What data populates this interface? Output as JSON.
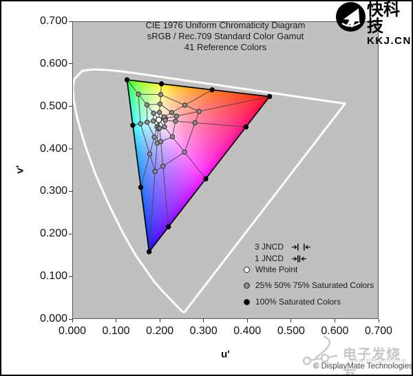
{
  "header": {
    "logo_name": "快科技",
    "logo_sub": "KKJ.CN"
  },
  "watermark": {
    "brand": "电子发烧友",
    "url": "www.elecfans.com",
    "copyright": "© DisplayMate Technologies"
  },
  "chart_data": {
    "type": "scatter",
    "title_lines": [
      "CIE 1976 Uniform Chromaticity Diagram",
      "sRGB / Rec.709 Standard Color Gamut",
      "41 Reference Colors"
    ],
    "xlabel": "u'",
    "ylabel": "v'",
    "xlim": [
      0.0,
      0.7
    ],
    "ylim": [
      0.0,
      0.7
    ],
    "x_ticks": [
      "0.000",
      "0.100",
      "0.200",
      "0.300",
      "0.400",
      "0.500",
      "0.600",
      "0.700"
    ],
    "y_ticks": [
      "0.000",
      "0.100",
      "0.200",
      "0.300",
      "0.400",
      "0.500",
      "0.600",
      "0.700"
    ],
    "grid": false,
    "legend_position": "inside-lower-right",
    "colors": {
      "plot_bg": "#c0c0c0",
      "spectral_locus": "#ffffff",
      "gamut_outline": "#000000",
      "reference_lines": "#4a4a4a",
      "white_swatch": "#ffffff",
      "gray_swatch": "#8e8e8e",
      "black_swatch": "#000000"
    },
    "white_point": {
      "label": "White Point",
      "u": 0.1978,
      "v": 0.4683
    },
    "gamut_vertices": {
      "red": [
        0.4508,
        0.5229
      ],
      "green": [
        0.125,
        0.5625
      ],
      "blue": [
        0.1755,
        0.1579
      ]
    },
    "saturation_levels_percent": [
      25,
      50,
      75,
      100
    ],
    "hues": [
      {
        "name": "red",
        "points": [
          [
            0.2129,
            0.4716
          ],
          [
            0.2383,
            0.477
          ],
          [
            0.2898,
            0.4882
          ],
          [
            0.4508,
            0.5229
          ]
        ]
      },
      {
        "name": "orange",
        "points": [
          [
            0.2095,
            0.4751
          ],
          [
            0.2273,
            0.4854
          ],
          [
            0.2573,
            0.5028
          ],
          [
            0.3196,
            0.5388
          ]
        ]
      },
      {
        "name": "yellow",
        "points": [
          [
            0.1991,
            0.4859
          ],
          [
            0.2005,
            0.5055
          ],
          [
            0.2021,
            0.5277
          ],
          [
            0.2039,
            0.5529
          ]
        ]
      },
      {
        "name": "green",
        "points": [
          [
            0.1858,
            0.4839
          ],
          [
            0.1707,
            0.5035
          ],
          [
            0.1511,
            0.5287
          ],
          [
            0.125,
            0.5625
          ]
        ]
      },
      {
        "name": "cyan",
        "points": [
          [
            0.1852,
            0.4656
          ],
          [
            0.1712,
            0.4626
          ],
          [
            0.1557,
            0.4592
          ],
          [
            0.1383,
            0.4555
          ]
        ]
      },
      {
        "name": "azure",
        "points": [
          [
            0.1936,
            0.452
          ],
          [
            0.1873,
            0.4278
          ],
          [
            0.1769,
            0.3879
          ],
          [
            0.1566,
            0.3096
          ]
        ]
      },
      {
        "name": "blue",
        "points": [
          [
            0.1963,
            0.4476
          ],
          [
            0.1939,
            0.4136
          ],
          [
            0.1891,
            0.3469
          ],
          [
            0.1755,
            0.1579
          ]
        ]
      },
      {
        "name": "violet",
        "points": [
          [
            0.1996,
            0.4486
          ],
          [
            0.2023,
            0.4171
          ],
          [
            0.2074,
            0.3592
          ],
          [
            0.2198,
            0.2167
          ]
        ]
      },
      {
        "name": "magenta",
        "points": [
          [
            0.2106,
            0.4518
          ],
          [
            0.2287,
            0.4284
          ],
          [
            0.2566,
            0.3923
          ],
          [
            0.3051,
            0.3297
          ]
        ]
      },
      {
        "name": "rose",
        "points": [
          [
            0.2124,
            0.4671
          ],
          [
            0.236,
            0.4651
          ],
          [
            0.2805,
            0.4614
          ],
          [
            0.3971,
            0.4516
          ]
        ]
      }
    ],
    "spectral_locus": [
      [
        0.2568,
        0.0166
      ],
      [
        0.2557,
        0.0159
      ],
      [
        0.2522,
        0.0169
      ],
      [
        0.2347,
        0.035
      ],
      [
        0.2266,
        0.0437
      ],
      [
        0.2161,
        0.0549
      ],
      [
        0.2033,
        0.0688
      ],
      [
        0.1877,
        0.0871
      ],
      [
        0.1441,
        0.151
      ],
      [
        0.1147,
        0.2044
      ],
      [
        0.0828,
        0.2708
      ],
      [
        0.0521,
        0.3427
      ],
      [
        0.0282,
        0.4117
      ],
      [
        0.0119,
        0.4699
      ],
      [
        0.0035,
        0.5131
      ],
      [
        0.0014,
        0.5431
      ],
      [
        0.0046,
        0.5638
      ],
      [
        0.0231,
        0.5837
      ],
      [
        0.0501,
        0.5868
      ],
      [
        0.0792,
        0.5856
      ],
      [
        0.1127,
        0.5821
      ],
      [
        0.1531,
        0.5766
      ],
      [
        0.2026,
        0.5694
      ],
      [
        0.2623,
        0.5604
      ],
      [
        0.3315,
        0.5501
      ],
      [
        0.4035,
        0.5393
      ],
      [
        0.4691,
        0.5296
      ],
      [
        0.5202,
        0.5219
      ],
      [
        0.5565,
        0.5165
      ],
      [
        0.6005,
        0.5099
      ],
      [
        0.6234,
        0.5065
      ]
    ],
    "legend": [
      {
        "marker": "jncd-arrows-wide",
        "label": "3 JNCD"
      },
      {
        "marker": "jncd-arrows-narrow",
        "label": "1 JNCD"
      },
      {
        "marker": "white-circle",
        "label": "White Point"
      },
      {
        "marker": "gray-circle",
        "label": "25% 50% 75% Saturated Colors"
      },
      {
        "marker": "black-circle",
        "label": "100% Saturated Colors"
      }
    ]
  }
}
